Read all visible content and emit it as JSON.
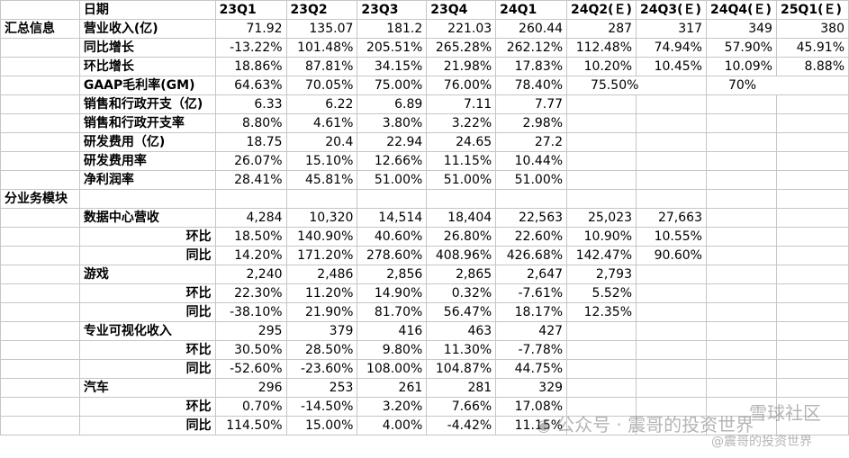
{
  "header": [
    "日期",
    "23Q1",
    "23Q2",
    "23Q3",
    "23Q4",
    "24Q1",
    "24Q2(Ｅ)",
    "24Q3(Ｅ)",
    "24Q4(Ｅ)",
    "25Q1(Ｅ)"
  ],
  "section_summary": "汇总信息",
  "section_segments": "分业务模块",
  "summary_rows": [
    {
      "label": "营业收入(亿)",
      "values": [
        "71.92",
        "135.07",
        "181.2",
        "221.03",
        "260.44",
        "287",
        "317",
        "349",
        "380"
      ]
    },
    {
      "label": "同比增长",
      "values": [
        "-13.22%",
        "101.48%",
        "205.51%",
        "265.28%",
        "262.12%",
        "112.48%",
        "74.94%",
        "57.90%",
        "45.91%"
      ]
    },
    {
      "label": "环比增长",
      "values": [
        "18.86%",
        "87.81%",
        "34.15%",
        "21.98%",
        "17.83%",
        "10.20%",
        "10.45%",
        "10.09%",
        "8.88%"
      ]
    },
    {
      "label": "GAAP毛利率(GM)",
      "values": [
        "64.63%",
        "70.05%",
        "75.00%",
        "76.00%",
        "78.40%"
      ],
      "est_q2": "75.50%",
      "est_q4": "70%"
    },
    {
      "label": "销售和行政开支（亿)",
      "values": [
        "6.33",
        "6.22",
        "6.89",
        "7.11",
        "7.77"
      ]
    },
    {
      "label": "销售和行政开支率",
      "values": [
        "8.80%",
        "4.61%",
        "3.80%",
        "3.22%",
        "2.98%"
      ]
    },
    {
      "label": "研发费用（亿)",
      "values": [
        "18.75",
        "20.4",
        "22.94",
        "24.65",
        "27.2"
      ]
    },
    {
      "label": "研发费用率",
      "values": [
        "26.07%",
        "15.10%",
        "12.66%",
        "11.15%",
        "10.44%"
      ]
    },
    {
      "label": "净利润率",
      "values": [
        "28.41%",
        "45.81%",
        "51.00%",
        "51.00%",
        "51.00%"
      ]
    }
  ],
  "segments": [
    {
      "name": "数据中心营收",
      "values": [
        "4,284",
        "10,320",
        "14,514",
        "18,404",
        "22,563",
        "25,023",
        "27,663"
      ],
      "qoq_label": "环比",
      "qoq": [
        "18.50%",
        "140.90%",
        "40.60%",
        "26.80%",
        "22.60%",
        "10.90%",
        "10.55%"
      ],
      "yoy_label": "同比",
      "yoy": [
        "14.20%",
        "171.20%",
        "278.60%",
        "408.96%",
        "426.68%",
        "142.47%",
        "90.60%"
      ]
    },
    {
      "name": "游戏",
      "values": [
        "2,240",
        "2,486",
        "2,856",
        "2,865",
        "2,647",
        "2,793"
      ],
      "qoq_label": "环比",
      "qoq": [
        "22.30%",
        "11.20%",
        "14.90%",
        "0.32%",
        "-7.61%",
        "5.52%"
      ],
      "yoy_label": "同比",
      "yoy": [
        "-38.10%",
        "21.90%",
        "81.70%",
        "56.47%",
        "18.17%",
        "12.35%"
      ]
    },
    {
      "name": "专业可视化收入",
      "values": [
        "295",
        "379",
        "416",
        "463",
        "427"
      ],
      "qoq_label": "环比",
      "qoq": [
        "30.50%",
        "28.50%",
        "9.80%",
        "11.30%",
        "-7.78%"
      ],
      "yoy_label": "同比",
      "yoy": [
        "-52.60%",
        "-23.60%",
        "108.00%",
        "104.87%",
        "44.75%"
      ]
    },
    {
      "name": "汽车",
      "values": [
        "296",
        "253",
        "261",
        "281",
        "329"
      ],
      "qoq_label": "环比",
      "qoq": [
        "0.70%",
        "-14.50%",
        "3.20%",
        "7.66%",
        "17.08%"
      ],
      "yoy_label": "同比",
      "yoy": [
        "114.50%",
        "15.00%",
        "4.00%",
        "-4.42%",
        "11.15%"
      ]
    }
  ],
  "watermarks": {
    "wechat": "公众号 · 震哥的投资世界",
    "xueqiu": "雪球社区",
    "xueqiu_handle": "@震哥的投资世界"
  }
}
